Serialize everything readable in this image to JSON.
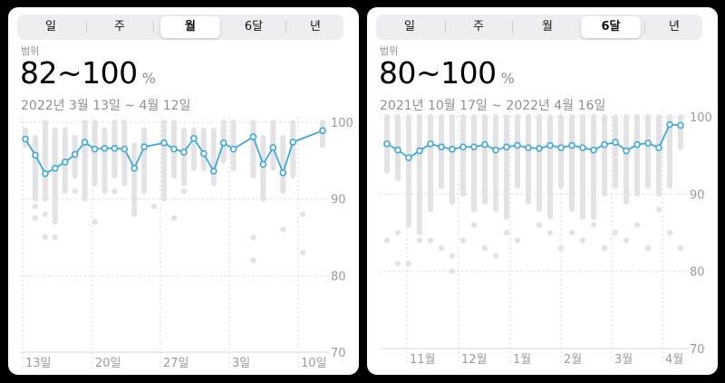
{
  "left": {
    "segments": [
      "일",
      "주",
      "월",
      "6달",
      "년"
    ],
    "active_segment": 2,
    "range_label": "범위",
    "range_value": "82~100",
    "unit": "%",
    "date_range": "2022년 3월 13일 ~ 4월 12일",
    "y_ticks": [
      "100",
      "90",
      "80",
      "70"
    ],
    "x_labels": [
      "13일",
      "20일",
      "27일",
      "3일",
      "10일"
    ],
    "colors": {
      "line": "#3ea8d8",
      "range_bar": "#e3e3e6",
      "grid": "#d8d8dc"
    },
    "chart_data": {
      "type": "line",
      "ylim": [
        70,
        100
      ],
      "x": [
        0,
        1,
        2,
        3,
        4,
        5,
        6,
        7,
        8,
        9,
        10,
        11,
        12,
        13,
        14,
        15,
        16,
        17,
        18,
        19,
        20,
        21,
        22,
        23,
        24,
        25,
        26,
        27,
        28,
        29,
        30
      ],
      "series": [
        {
          "values": [
            97.8,
            95.7,
            93.3,
            94.0,
            94.8,
            95.8,
            97.4,
            96.5,
            96.6,
            96.6,
            96.5,
            94.0,
            96.8,
            null,
            97.3,
            96.5,
            96.1,
            97.9,
            95.9,
            93.6,
            97.3,
            96.5,
            null,
            98.1,
            94.5,
            96.7,
            93.4,
            97.4,
            null,
            null,
            98.9
          ]
        }
      ],
      "ranges": [
        [
          97,
          99
        ],
        [
          90,
          98
        ],
        [
          90,
          100
        ],
        [
          87,
          99
        ],
        [
          91,
          99
        ],
        [
          93,
          98
        ],
        [
          90,
          100
        ],
        [
          92,
          100
        ],
        [
          91,
          99
        ],
        [
          93,
          100
        ],
        [
          92,
          100
        ],
        [
          88,
          97
        ],
        [
          91,
          99
        ],
        null,
        [
          90,
          100
        ],
        [
          93,
          100
        ],
        [
          92,
          99
        ],
        [
          94,
          99
        ],
        [
          94,
          99
        ],
        [
          92,
          99
        ],
        [
          95,
          100
        ],
        [
          94,
          100
        ],
        null,
        [
          93,
          100
        ],
        [
          90,
          98
        ],
        [
          94,
          100
        ],
        [
          91,
          98
        ],
        [
          93,
          100
        ],
        null,
        null,
        [
          97,
          100
        ]
      ],
      "outliers": [
        [
          1,
          89
        ],
        [
          1,
          87.5
        ],
        [
          2,
          85
        ],
        [
          2,
          88
        ],
        [
          3,
          85
        ],
        [
          5,
          91
        ],
        [
          6,
          91
        ],
        [
          7,
          87
        ],
        [
          9,
          91
        ],
        [
          13,
          89
        ],
        [
          15,
          87.5
        ],
        [
          16,
          91
        ],
        [
          18,
          94
        ],
        [
          19,
          94
        ],
        [
          20,
          95
        ],
        [
          21,
          94
        ],
        [
          23,
          85
        ],
        [
          23,
          82
        ],
        [
          26,
          86
        ],
        [
          26,
          92
        ],
        [
          28,
          88
        ],
        [
          28,
          83
        ]
      ]
    }
  },
  "right": {
    "segments": [
      "일",
      "주",
      "월",
      "6달",
      "년"
    ],
    "active_segment": 3,
    "range_label": "범위",
    "range_value": "80~100",
    "unit": "%",
    "date_range": "2021년 10월 17일 ~ 2022년 4월 16일",
    "y_ticks": [
      "100",
      "90",
      "80",
      "70"
    ],
    "x_labels": [
      "11월",
      "12월",
      "1월",
      "2월",
      "3월",
      "4월"
    ],
    "colors": {
      "line": "#3ea8d8",
      "range_bar": "#e3e3e6",
      "grid": "#d8d8dc"
    },
    "chart_data": {
      "type": "line",
      "ylim": [
        70,
        100
      ],
      "x": [
        0,
        1,
        2,
        3,
        4,
        5,
        6,
        7,
        8,
        9,
        10,
        11,
        12,
        13,
        14,
        15,
        16,
        17,
        18,
        19,
        20,
        21,
        22,
        23,
        24,
        25,
        26,
        27
      ],
      "series": [
        {
          "values": [
            96.5,
            95.7,
            94.7,
            95.6,
            96.5,
            96.1,
            95.8,
            96.1,
            96.1,
            96.4,
            95.7,
            96.1,
            96.3,
            96.0,
            95.9,
            96.3,
            96.0,
            96.3,
            96.0,
            95.7,
            96.4,
            96.7,
            95.6,
            96.4,
            96.6,
            96.0,
            99.0,
            98.9
          ]
        }
      ],
      "ranges": [
        [
          93,
          100
        ],
        [
          92,
          100
        ],
        [
          86,
          100
        ],
        [
          85,
          100
        ],
        [
          88,
          100
        ],
        [
          91,
          100
        ],
        [
          89,
          100
        ],
        [
          90,
          100
        ],
        [
          88,
          100
        ],
        [
          89,
          100
        ],
        [
          88,
          100
        ],
        [
          87,
          100
        ],
        [
          91,
          100
        ],
        [
          89,
          100
        ],
        [
          88,
          100
        ],
        [
          87,
          100
        ],
        [
          91,
          100
        ],
        [
          88,
          100
        ],
        [
          87,
          100
        ],
        [
          87,
          100
        ],
        [
          90,
          100
        ],
        [
          91,
          100
        ],
        [
          89,
          100
        ],
        [
          90,
          100
        ],
        [
          91,
          100
        ],
        [
          90,
          100
        ],
        [
          91,
          100
        ],
        [
          96,
          100
        ]
      ],
      "outliers": [
        [
          0,
          84
        ],
        [
          1,
          81
        ],
        [
          1,
          85
        ],
        [
          2,
          81
        ],
        [
          3,
          84
        ],
        [
          4,
          84
        ],
        [
          5,
          83
        ],
        [
          6,
          82
        ],
        [
          6,
          80
        ],
        [
          7,
          84
        ],
        [
          8,
          86
        ],
        [
          9,
          83
        ],
        [
          10,
          82
        ],
        [
          11,
          85
        ],
        [
          12,
          84
        ],
        [
          14,
          86
        ],
        [
          15,
          85
        ],
        [
          16,
          83
        ],
        [
          17,
          85
        ],
        [
          18,
          84
        ],
        [
          19,
          86
        ],
        [
          20,
          83
        ],
        [
          21,
          85
        ],
        [
          22,
          84
        ],
        [
          23,
          86
        ],
        [
          24,
          83
        ],
        [
          25,
          88
        ],
        [
          26,
          85
        ],
        [
          27,
          83
        ]
      ]
    }
  }
}
